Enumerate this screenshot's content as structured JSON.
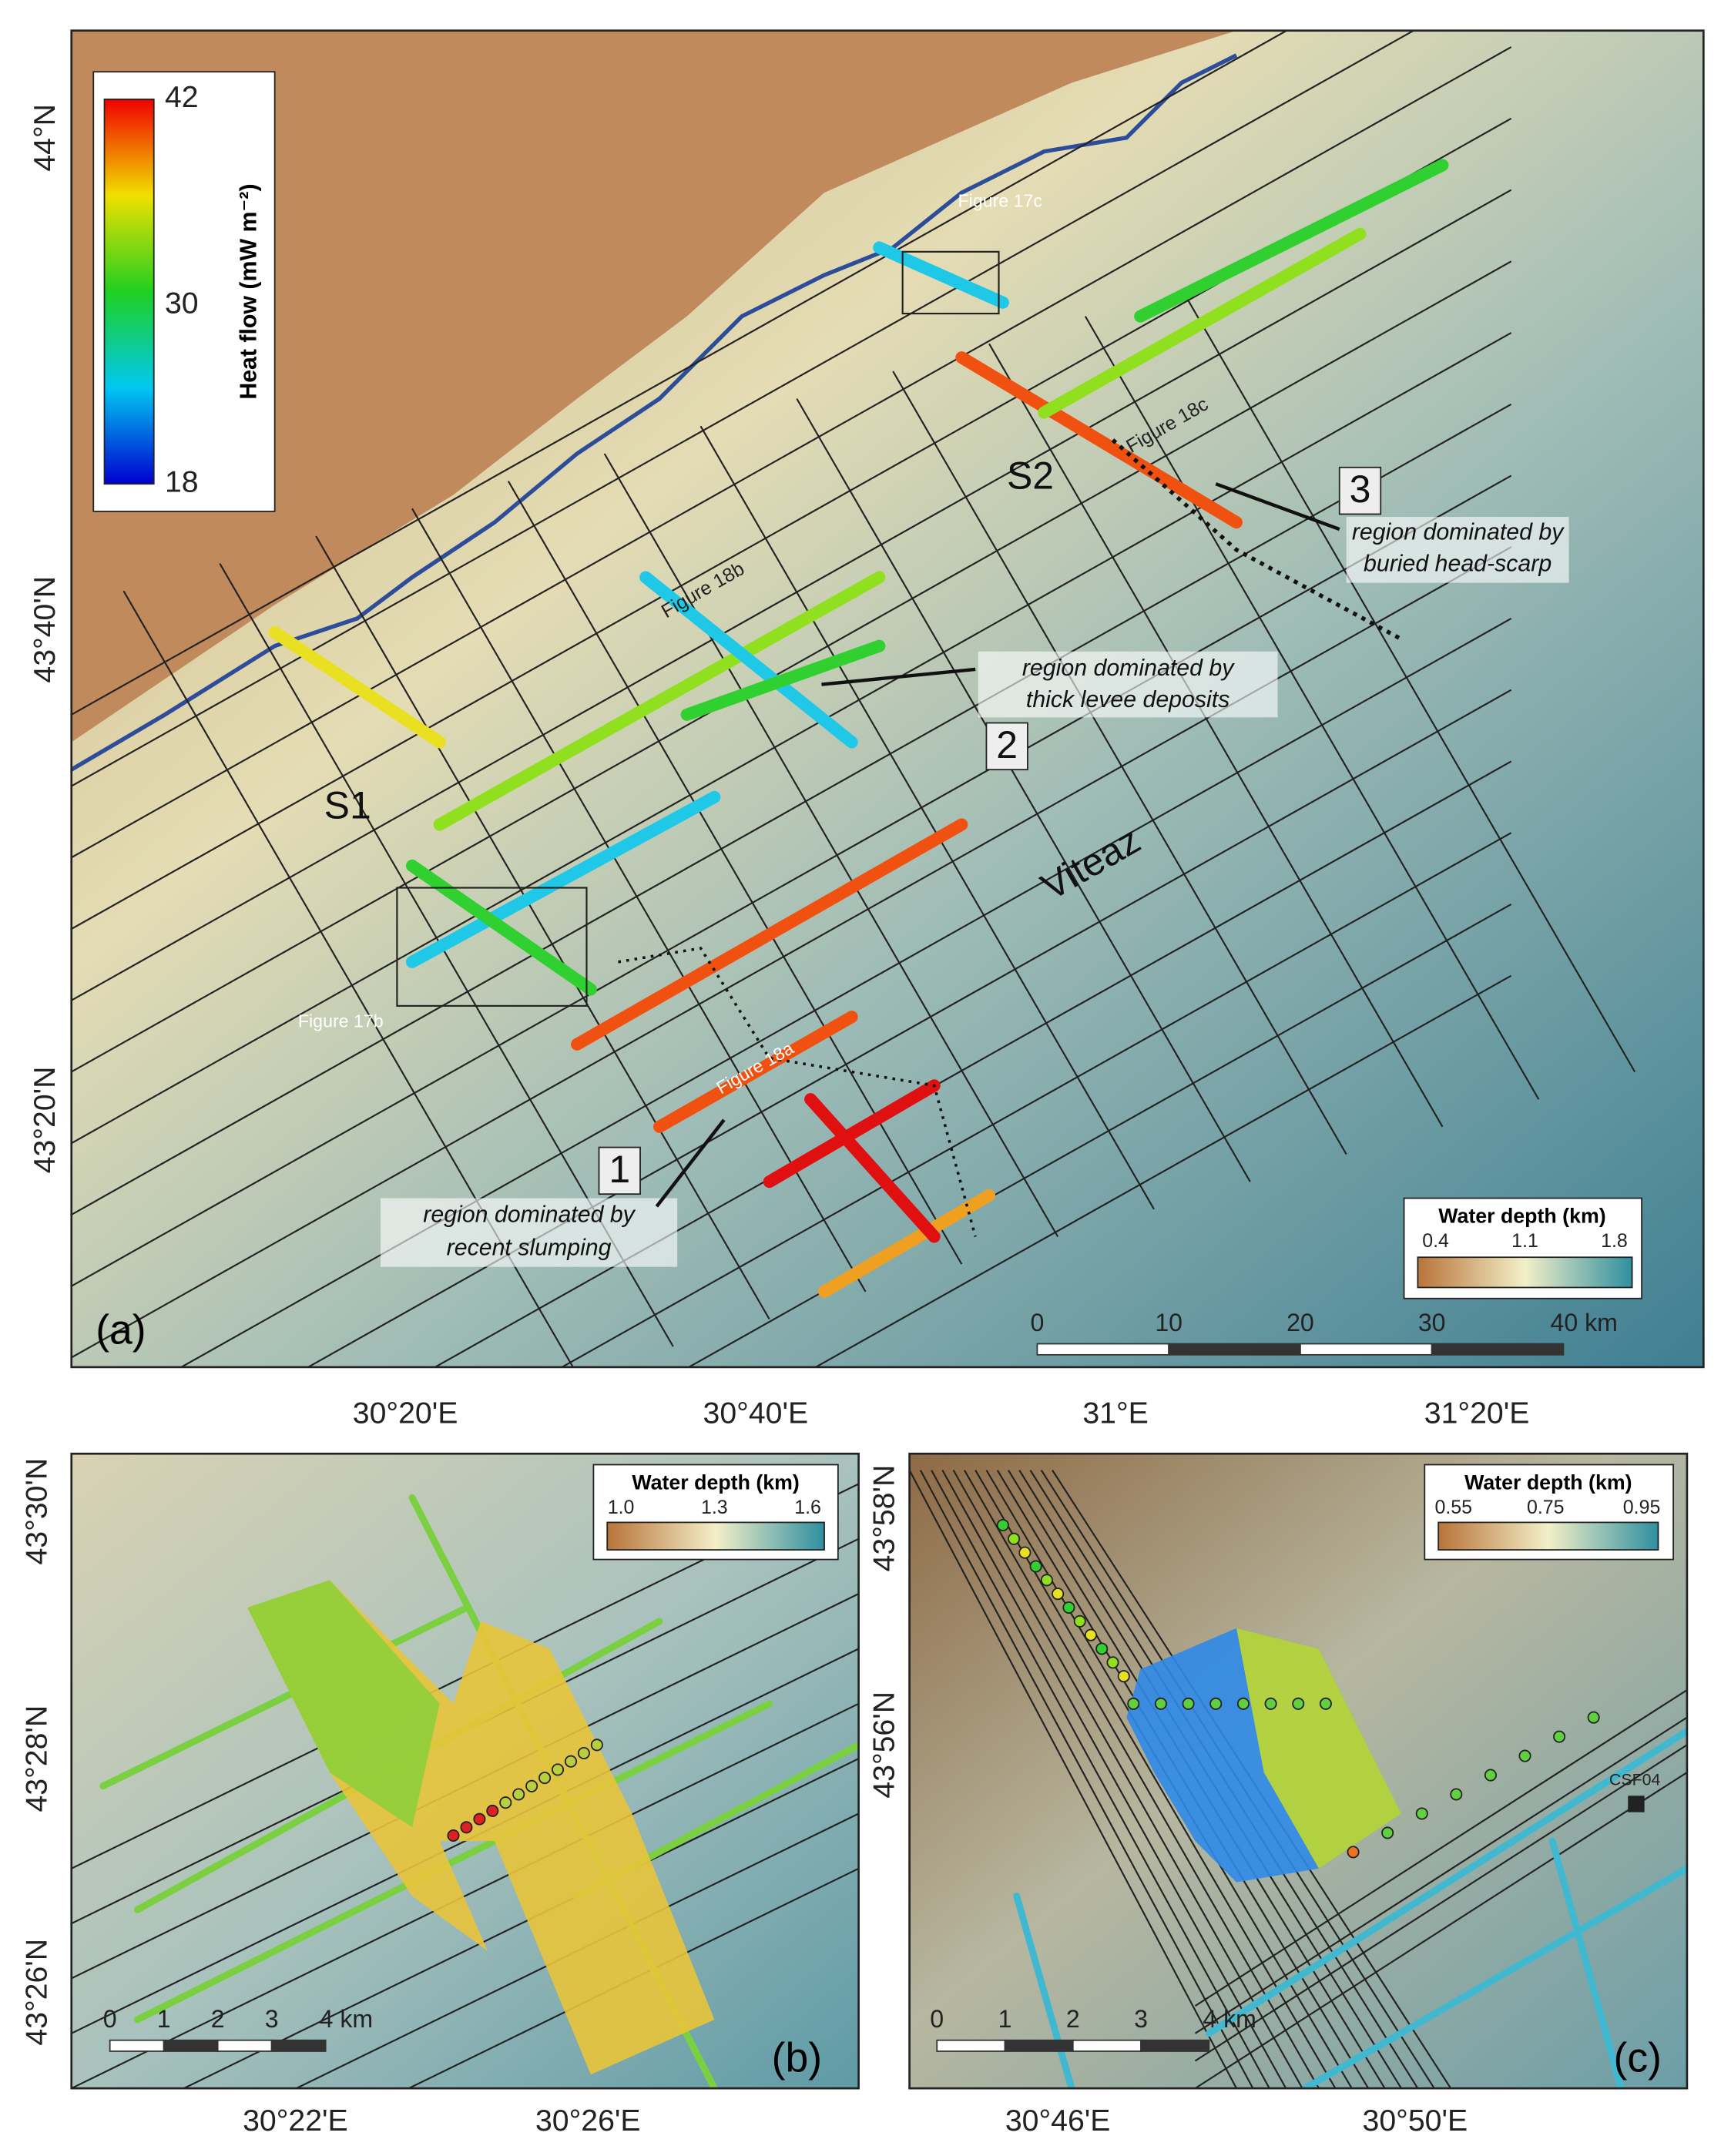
{
  "panel_a": {
    "y_ticks": [
      "44°N",
      "43°40'N",
      "43°20'N"
    ],
    "x_ticks": [
      "30°20'E",
      "30°40'E",
      "31°E",
      "31°20'E"
    ],
    "colorbar": {
      "title": "Heat flow (mW m⁻²)",
      "ticks": [
        "42",
        "30",
        "18"
      ]
    },
    "depth_legend": {
      "title": "Water depth (km)",
      "ticks": [
        "0.4",
        "1.1",
        "1.8"
      ]
    },
    "scale_bar": [
      "0",
      "10",
      "20",
      "30",
      "40 km"
    ],
    "labels": {
      "fig17c": "Figure 17c",
      "fig18c": "Figure 18c",
      "fig18b": "Figure 18b",
      "fig18a": "Figure 18a",
      "fig17b": "Figure 17b",
      "s1": "S1",
      "s2": "S2",
      "viteaz": "Viteaz"
    },
    "regions": [
      {
        "number": "1",
        "text": [
          "region dominated by",
          "recent slumping"
        ]
      },
      {
        "number": "2",
        "text": [
          "region dominated by",
          "thick levee deposits"
        ]
      },
      {
        "number": "3",
        "text": [
          "region dominated by",
          "buried head-scarp"
        ]
      }
    ],
    "panel_label": "(a)"
  },
  "panel_b": {
    "y_ticks": [
      "43°30'N",
      "43°28'N",
      "43°26'N"
    ],
    "x_ticks": [
      "30°22'E",
      "30°26'E"
    ],
    "depth_legend": {
      "title": "Water depth (km)",
      "ticks": [
        "1.0",
        "1.3",
        "1.6"
      ]
    },
    "scale_bar": [
      "0",
      "1",
      "2",
      "3",
      "4 km"
    ],
    "panel_label": "(b)"
  },
  "panel_c": {
    "y_ticks": [
      "43°58'N",
      "43°56'N"
    ],
    "x_ticks": [
      "30°46'E",
      "30°50'E"
    ],
    "depth_legend": {
      "title": "Water depth (km)",
      "ticks": [
        "0.55",
        "0.75",
        "0.95"
      ]
    },
    "scale_bar": [
      "0",
      "1",
      "2",
      "3",
      "4 km"
    ],
    "station": "CSF04",
    "panel_label": "(c)"
  }
}
